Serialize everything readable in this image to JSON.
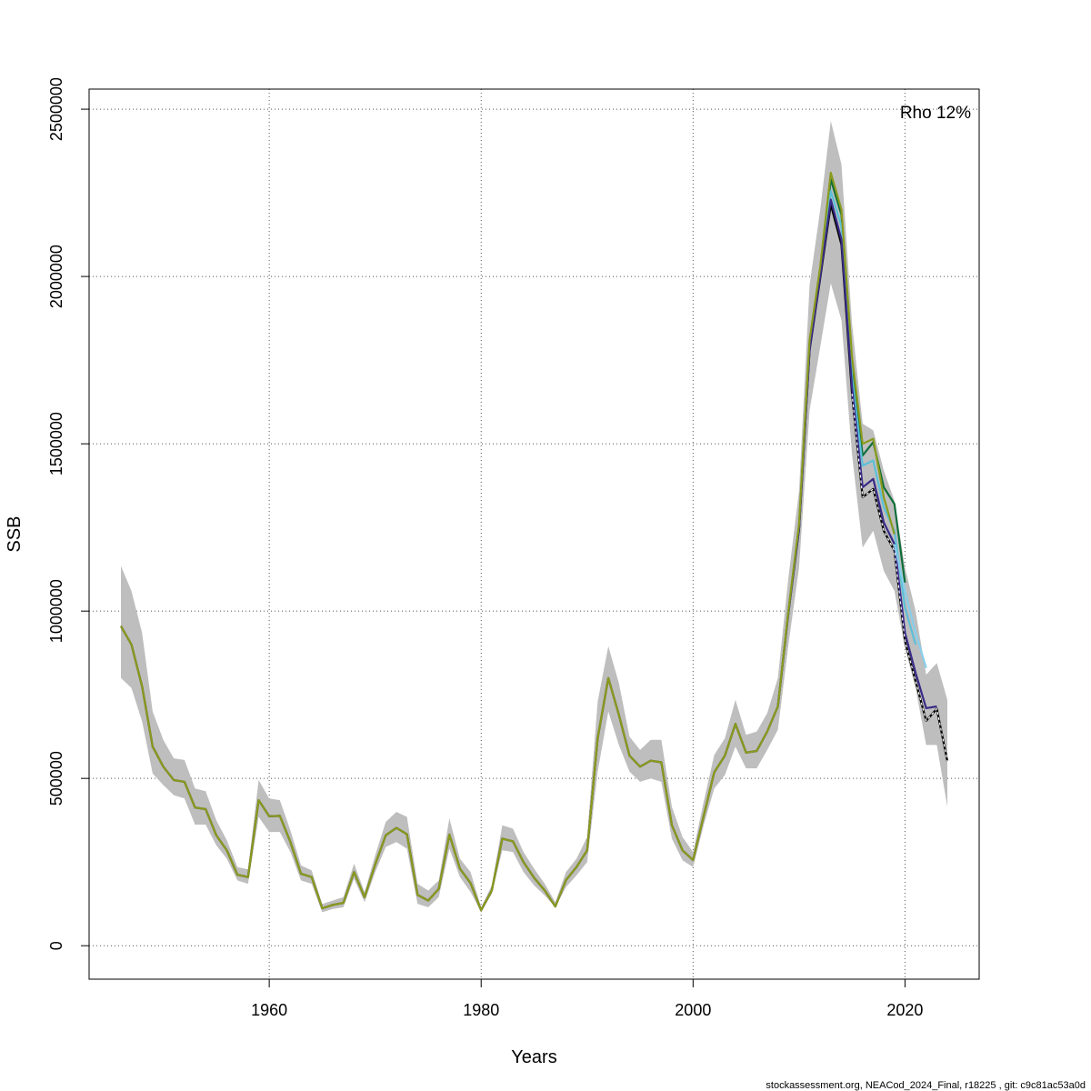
{
  "chart_data": {
    "type": "line",
    "title": "",
    "xlabel": "Years",
    "ylabel": "SSB",
    "xlim": [
      1943,
      2027
    ],
    "ylim": [
      -100000,
      2560000
    ],
    "xticks": [
      1960,
      1980,
      2000,
      2020
    ],
    "yticks": [
      0,
      500000,
      1000000,
      1500000,
      2000000,
      2500000
    ],
    "grid": true,
    "annotation": "Rho 12%",
    "footer": "stockassessment.org, NEACod_2024_Final, r18225 , git: c9c81ac53a0d",
    "colors": {
      "band": "#bebebe",
      "main": "#000000",
      "retro_peels": [
        "#8a9a1e",
        "#0f6e3a",
        "#5bc0d8",
        "#382b87",
        "#87ceeb"
      ]
    },
    "band": {
      "x": [
        1946,
        1947,
        1948,
        1949,
        1950,
        1951,
        1952,
        1953,
        1954,
        1955,
        1956,
        1957,
        1958,
        1959,
        1960,
        1961,
        1962,
        1963,
        1964,
        1965,
        1966,
        1967,
        1968,
        1969,
        1970,
        1971,
        1972,
        1973,
        1974,
        1975,
        1976,
        1977,
        1978,
        1979,
        1980,
        1981,
        1982,
        1983,
        1984,
        1985,
        1986,
        1987,
        1988,
        1989,
        1990,
        1991,
        1992,
        1993,
        1994,
        1995,
        1996,
        1997,
        1998,
        1999,
        2000,
        2001,
        2002,
        2003,
        2004,
        2005,
        2006,
        2007,
        2008,
        2009,
        2010,
        2011,
        2012,
        2013,
        2014,
        2015,
        2016,
        2017,
        2018,
        2019,
        2020,
        2021,
        2022,
        2023,
        2024
      ],
      "lower": [
        800000,
        770000,
        670000,
        515000,
        480000,
        450000,
        440000,
        362000,
        362000,
        300000,
        260000,
        195000,
        185000,
        385000,
        340000,
        340000,
        280000,
        195000,
        185000,
        100000,
        110000,
        115000,
        200000,
        130000,
        220000,
        295000,
        310000,
        290000,
        125000,
        115000,
        145000,
        290000,
        205000,
        160000,
        100000,
        155000,
        285000,
        280000,
        220000,
        180000,
        150000,
        115000,
        175000,
        210000,
        250000,
        520000,
        700000,
        600000,
        520000,
        490000,
        500000,
        490000,
        320000,
        255000,
        235000,
        360000,
        470000,
        510000,
        595000,
        530000,
        530000,
        585000,
        645000,
        900000,
        1130000,
        1600000,
        1790000,
        1980000,
        1870000,
        1470000,
        1190000,
        1240000,
        1120000,
        1060000,
        890000,
        770000,
        600000,
        600000,
        415000
      ],
      "upper": [
        1135000,
        1060000,
        935000,
        700000,
        615000,
        560000,
        555000,
        470000,
        462000,
        375000,
        315000,
        235000,
        228000,
        495000,
        440000,
        435000,
        345000,
        240000,
        225000,
        125000,
        135000,
        145000,
        245000,
        160000,
        270000,
        370000,
        400000,
        385000,
        185000,
        165000,
        195000,
        380000,
        260000,
        220000,
        115000,
        180000,
        360000,
        350000,
        280000,
        230000,
        185000,
        130000,
        220000,
        260000,
        325000,
        730000,
        895000,
        785000,
        625000,
        585000,
        615000,
        615000,
        415000,
        325000,
        280000,
        430000,
        570000,
        620000,
        735000,
        630000,
        640000,
        695000,
        800000,
        1100000,
        1360000,
        1975000,
        2200000,
        2465000,
        2335000,
        1860000,
        1560000,
        1540000,
        1420000,
        1330000,
        1130000,
        1000000,
        810000,
        845000,
        735000
      ]
    },
    "x": [
      1946,
      1947,
      1948,
      1949,
      1950,
      1951,
      1952,
      1953,
      1954,
      1955,
      1956,
      1957,
      1958,
      1959,
      1960,
      1961,
      1962,
      1963,
      1964,
      1965,
      1966,
      1967,
      1968,
      1969,
      1970,
      1971,
      1972,
      1973,
      1974,
      1975,
      1976,
      1977,
      1978,
      1979,
      1980,
      1981,
      1982,
      1983,
      1984,
      1985,
      1986,
      1987,
      1988,
      1989,
      1990,
      1991,
      1992,
      1993,
      1994,
      1995,
      1996,
      1997,
      1998,
      1999,
      2000,
      2001,
      2002,
      2003,
      2004,
      2005,
      2006,
      2007,
      2008,
      2009,
      2010,
      2011,
      2012,
      2013,
      2014,
      2015,
      2016,
      2017,
      2018,
      2019,
      2020,
      2021,
      2022,
      2023,
      2024
    ],
    "series": [
      {
        "color": "#000000",
        "dashed": false,
        "x": [
          1946,
          1947,
          1948,
          1949,
          1950,
          1951,
          1952,
          1953,
          1954,
          1955,
          1956,
          1957,
          1958,
          1959,
          1960,
          1961,
          1962,
          1963,
          1964,
          1965,
          1966,
          1967,
          1968,
          1969,
          1970,
          1971,
          1972,
          1973,
          1974,
          1975,
          1976,
          1977,
          1978,
          1979,
          1980,
          1981,
          1982,
          1983,
          1984,
          1985,
          1986,
          1987,
          1988,
          1989,
          1990,
          1991,
          1992,
          1993,
          1994,
          1995,
          1996,
          1997,
          1998,
          1999,
          2000,
          2001,
          2002,
          2003,
          2004,
          2005,
          2006,
          2007,
          2008,
          2009,
          2010,
          2011,
          2012,
          2013,
          2014,
          2015,
          2016,
          2017,
          2018,
          2019,
          2020,
          2021,
          2022,
          2023,
          2024
        ],
        "y": [
          955000,
          900000,
          775000,
          595000,
          535000,
          495000,
          490000,
          413000,
          408000,
          330000,
          285000,
          212000,
          205000,
          435000,
          387000,
          388000,
          310000,
          215000,
          205000,
          112000,
          122000,
          128000,
          220000,
          145000,
          243000,
          330000,
          352000,
          333000,
          152000,
          135000,
          170000,
          332000,
          230000,
          187000,
          106000,
          165000,
          320000,
          312000,
          250000,
          203000,
          165000,
          117000,
          196000,
          235000,
          285000,
          620000,
          800000,
          690000,
          568000,
          535000,
          553000,
          548000,
          360000,
          285000,
          256000,
          388000,
          518000,
          568000,
          663000,
          577000,
          582000,
          640000,
          715000,
          995000,
          1245000,
          1780000,
          1995000,
          2215000,
          2095000,
          1650000,
          1340000,
          1365000,
          1240000,
          1180000,
          910000,
          790000,
          672000,
          708000,
          552000
        ]
      },
      {
        "color": "#000000",
        "dashed": true,
        "x": [
          2015,
          2016,
          2017,
          2018,
          2019,
          2020,
          2021,
          2022,
          2023,
          2024
        ],
        "y": [
          1650000,
          1340000,
          1365000,
          1240000,
          1180000,
          910000,
          790000,
          672000,
          708000,
          552000
        ]
      },
      {
        "color": "#8a9a1e",
        "dashed": false,
        "x": [
          1946,
          1947,
          1948,
          1949,
          1950,
          1951,
          1952,
          1953,
          1954,
          1955,
          1956,
          1957,
          1958,
          1959,
          1960,
          1961,
          1962,
          1963,
          1964,
          1965,
          1966,
          1967,
          1968,
          1969,
          1970,
          1971,
          1972,
          1973,
          1974,
          1975,
          1976,
          1977,
          1978,
          1979,
          1980,
          1981,
          1982,
          1983,
          1984,
          1985,
          1986,
          1987,
          1988,
          1989,
          1990,
          1991,
          1992,
          1993,
          1994,
          1995,
          1996,
          1997,
          1998,
          1999,
          2000,
          2001,
          2002,
          2003,
          2004,
          2005,
          2006,
          2007,
          2008,
          2009,
          2010,
          2011,
          2012,
          2013,
          2014,
          2015,
          2016,
          2017,
          2018,
          2019
        ],
        "y": [
          955000,
          900000,
          775000,
          595000,
          535000,
          495000,
          490000,
          413000,
          408000,
          330000,
          285000,
          212000,
          205000,
          435000,
          387000,
          388000,
          310000,
          215000,
          205000,
          112000,
          122000,
          128000,
          220000,
          145000,
          243000,
          330000,
          352000,
          333000,
          152000,
          135000,
          170000,
          332000,
          230000,
          187000,
          106000,
          165000,
          320000,
          312000,
          250000,
          203000,
          165000,
          117000,
          196000,
          235000,
          285000,
          620000,
          800000,
          690000,
          568000,
          535000,
          553000,
          548000,
          360000,
          285000,
          256000,
          388000,
          518000,
          568000,
          663000,
          577000,
          582000,
          640000,
          715000,
          1000000,
          1260000,
          1810000,
          2030000,
          2310000,
          2200000,
          1760000,
          1500000,
          1515000,
          1340000,
          1230000
        ]
      },
      {
        "color": "#0f6e3a",
        "dashed": false,
        "x": [
          2008,
          2009,
          2010,
          2011,
          2012,
          2013,
          2014,
          2015,
          2016,
          2017,
          2018,
          2019,
          2020
        ],
        "y": [
          715000,
          1000000,
          1255000,
          1800000,
          2020000,
          2290000,
          2185000,
          1740000,
          1465000,
          1505000,
          1370000,
          1320000,
          1085000
        ]
      },
      {
        "color": "#5bc0d8",
        "dashed": false,
        "x": [
          2008,
          2009,
          2010,
          2011,
          2012,
          2013,
          2014,
          2015,
          2016,
          2017,
          2018,
          2019,
          2020,
          2021
        ],
        "y": [
          715000,
          995000,
          1250000,
          1790000,
          2010000,
          2255000,
          2150000,
          1700000,
          1435000,
          1450000,
          1310000,
          1240000,
          1010000,
          900000
        ]
      },
      {
        "color": "#382b87",
        "dashed": false,
        "x": [
          2008,
          2009,
          2010,
          2011,
          2012,
          2013,
          2014,
          2015,
          2016,
          2017,
          2018,
          2019,
          2020,
          2021,
          2022,
          2023
        ],
        "y": [
          715000,
          995000,
          1245000,
          1780000,
          2000000,
          2230000,
          2110000,
          1670000,
          1370000,
          1395000,
          1265000,
          1200000,
          935000,
          815000,
          710000,
          715000
        ]
      },
      {
        "color": "#87ceeb",
        "dashed": false,
        "x": [
          2019,
          2020,
          2021,
          2022
        ],
        "y": [
          1200000,
          1060000,
          935000,
          830000
        ]
      }
    ]
  }
}
